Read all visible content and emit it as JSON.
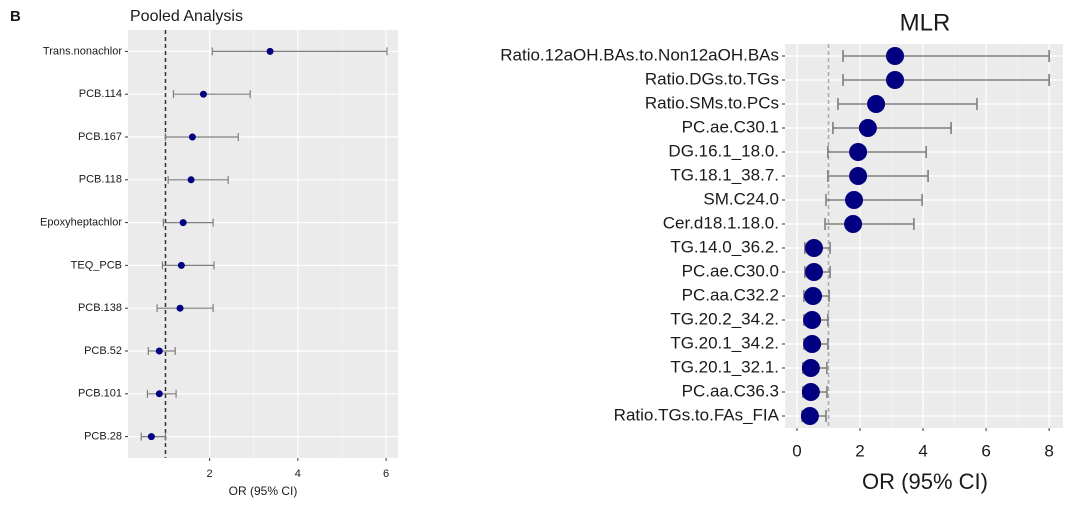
{
  "chart_data": [
    {
      "type": "forest",
      "panel_label": "B",
      "title": "Pooled Analysis",
      "x_label": "OR (95% CI)",
      "categories": [
        "Trans.nonachlor",
        "PCB.114",
        "PCB.167",
        "PCB.118",
        "Epoxyheptachlor",
        "TEQ_PCB",
        "PCB.138",
        "PCB.52",
        "PCB.101",
        "PCB.28"
      ],
      "values": [
        3.37,
        1.86,
        1.61,
        1.58,
        1.4,
        1.36,
        1.33,
        0.86,
        0.86,
        0.68
      ],
      "lower": [
        2.06,
        1.18,
        1.0,
        1.06,
        0.95,
        0.93,
        0.81,
        0.61,
        0.59,
        0.45
      ],
      "upper": [
        6.02,
        2.92,
        2.65,
        2.42,
        2.08,
        2.1,
        2.08,
        1.22,
        1.24,
        1.0
      ],
      "xlim": [
        0.15,
        6.27
      ],
      "xticks": [
        2,
        4,
        6
      ],
      "reference_line": 1,
      "color": "#000080",
      "grid": true
    },
    {
      "type": "forest",
      "title": "MLR",
      "x_label": "OR (95% CI)",
      "categories": [
        "Ratio.12aOH.BAs.to.Non12aOH.BAs",
        "Ratio.DGs.to.TGs",
        "Ratio.SMs.to.PCs",
        "PC.ae.C30.1",
        "DG.16.1_18.0.",
        "TG.18.1_38.7.",
        "SM.C24.0",
        "Cer.d18.1.18.0.",
        "TG.14.0_36.2.",
        "PC.ae.C30.0",
        "PC.aa.C32.2",
        "TG.20.2_34.2.",
        "TG.20.1_34.2.",
        "TG.20.1_32.1.",
        "PC.aa.C36.3",
        "Ratio.TGs.to.FAs_FIA"
      ],
      "values": [
        3.11,
        3.11,
        2.51,
        2.25,
        1.94,
        1.94,
        1.81,
        1.78,
        0.54,
        0.54,
        0.51,
        0.48,
        0.48,
        0.44,
        0.44,
        0.41
      ],
      "lower": [
        1.46,
        1.46,
        1.3,
        1.14,
        0.98,
        0.98,
        0.92,
        0.89,
        0.25,
        0.25,
        0.22,
        0.22,
        0.22,
        0.19,
        0.19,
        0.16
      ],
      "upper": [
        8.0,
        8.0,
        5.71,
        4.89,
        4.1,
        4.16,
        3.97,
        3.71,
        1.05,
        1.05,
        1.02,
        0.98,
        0.98,
        0.95,
        0.95,
        0.92
      ],
      "xlim": [
        -0.38,
        8.44
      ],
      "xticks": [
        0,
        2,
        4,
        6,
        8
      ],
      "reference_line": 1,
      "color": "#000080",
      "grid": true
    }
  ]
}
